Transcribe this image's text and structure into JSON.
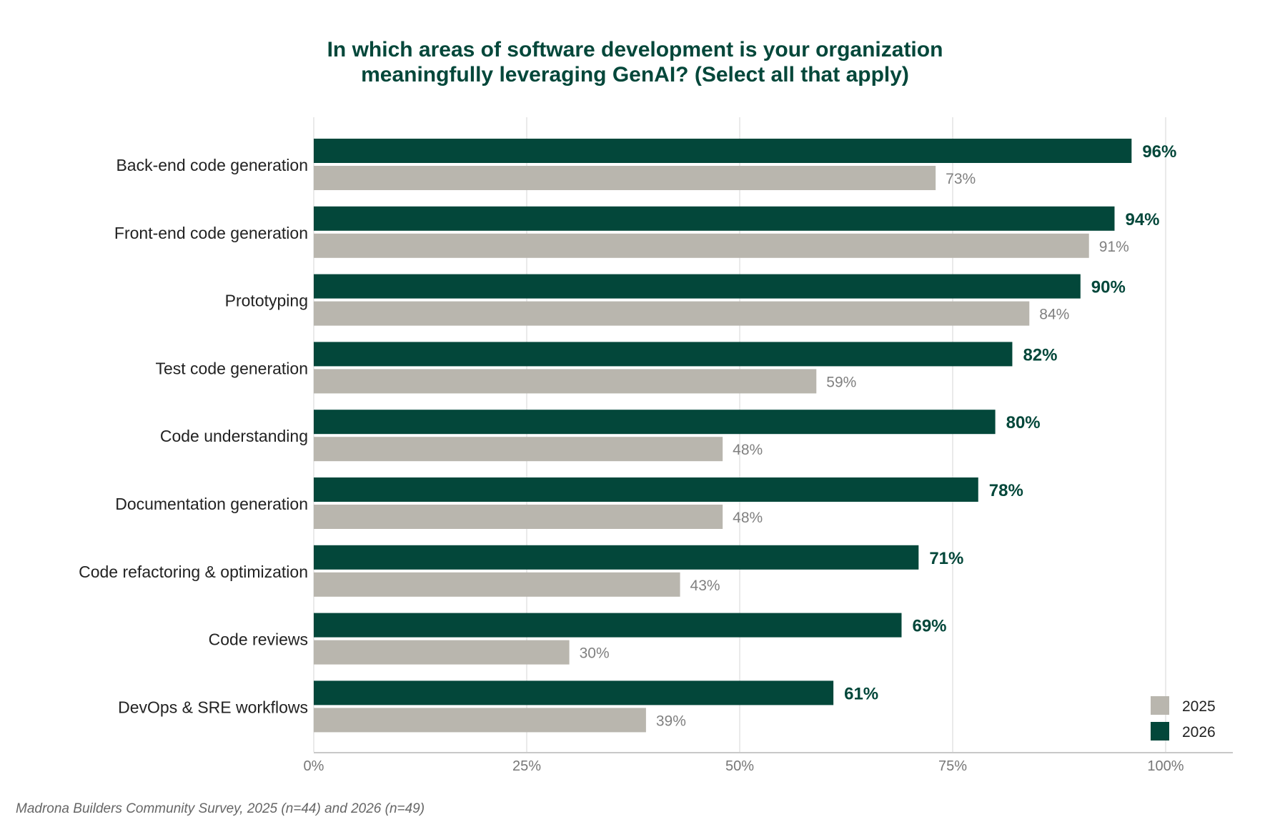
{
  "chart_data": {
    "type": "bar",
    "orientation": "horizontal",
    "title": [
      "In which areas of software development is your organization",
      "meaningfully leveraging GenAI? (Select all that apply)"
    ],
    "source": "Madrona Builders Community Survey, 2025 (n=44) and 2026 (n=49)",
    "categories": [
      "Back-end code generation",
      "Front-end code generation",
      "Prototyping",
      "Test code generation",
      "Code understanding",
      "Documentation generation",
      "Code refactoring & optimization",
      "Code reviews",
      "DevOps & SRE workflows"
    ],
    "series": [
      {
        "name": "2026",
        "color": "#03473a",
        "values": [
          96,
          94,
          90,
          82,
          80,
          78,
          71,
          69,
          61
        ],
        "labels": [
          "96%",
          "94%",
          "90%",
          "82%",
          "80%",
          "78%",
          "71%",
          "69%",
          "61%"
        ]
      },
      {
        "name": "2025",
        "color": "#b9b6ae",
        "values": [
          73,
          91,
          84,
          59,
          48,
          48,
          43,
          30,
          39
        ],
        "labels": [
          "73%",
          "91%",
          "84%",
          "59%",
          "48%",
          "48%",
          "43%",
          "30%",
          "39%"
        ]
      }
    ],
    "xlim": [
      0,
      100
    ],
    "x_ticks": [
      0,
      25,
      50,
      75,
      100
    ],
    "x_tick_labels": [
      "0%",
      "25%",
      "50%",
      "75%",
      "100%"
    ],
    "grid": true,
    "legend": {
      "position": "bottom-right",
      "entries": [
        "2025",
        "2026"
      ]
    }
  }
}
